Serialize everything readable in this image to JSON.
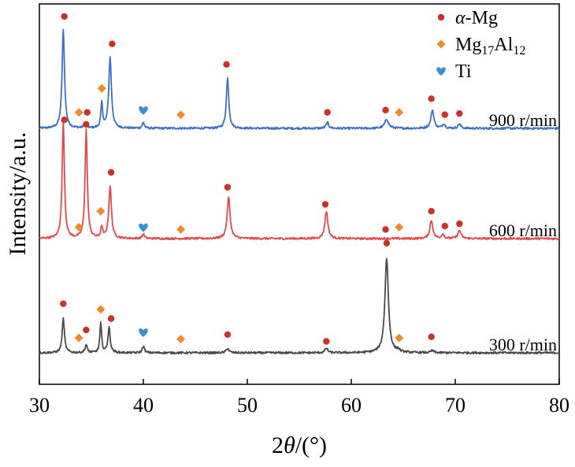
{
  "chart_data": {
    "type": "line",
    "xlabel": "2θ/(°)",
    "ylabel": "Intensity/a.u.",
    "xlim": [
      30,
      80
    ],
    "x_ticks": [
      "30",
      "40",
      "50",
      "60",
      "70",
      "80"
    ],
    "grid": false,
    "legend_position": "top-right",
    "legend": [
      {
        "symbol": "circle",
        "color": "#c8322a",
        "label": "α-Mg"
      },
      {
        "symbol": "diamond",
        "color": "#f08a2c",
        "label": "Mg17Al12"
      },
      {
        "symbol": "heart",
        "color": "#3a8fd4",
        "label": "Ti"
      }
    ],
    "series": [
      {
        "name": "900 r/min",
        "color": "#3e6fc4",
        "peaks": [
          {
            "x": 32.3,
            "h": 0.86,
            "w": 0.14
          },
          {
            "x": 34.4,
            "h": 0.04,
            "w": 0.12
          },
          {
            "x": 36.0,
            "h": 0.22,
            "w": 0.1
          },
          {
            "x": 36.8,
            "h": 0.62,
            "w": 0.15
          },
          {
            "x": 40.0,
            "h": 0.05,
            "w": 0.12
          },
          {
            "x": 48.1,
            "h": 0.44,
            "w": 0.14
          },
          {
            "x": 57.7,
            "h": 0.05,
            "w": 0.15
          },
          {
            "x": 63.4,
            "h": 0.08,
            "w": 0.22
          },
          {
            "x": 67.8,
            "h": 0.16,
            "w": 0.17
          },
          {
            "x": 68.9,
            "h": 0.04,
            "w": 0.14
          },
          {
            "x": 70.4,
            "h": 0.04,
            "w": 0.15
          }
        ],
        "label": "900 r/min",
        "markers": [
          {
            "type": "circle",
            "x": 32.4,
            "y": 0.98
          },
          {
            "type": "diamond",
            "x": 33.8,
            "y": 0.14
          },
          {
            "type": "circle",
            "x": 34.6,
            "y": 0.14
          },
          {
            "type": "diamond",
            "x": 36.0,
            "y": 0.35
          },
          {
            "type": "circle",
            "x": 37.0,
            "y": 0.74
          },
          {
            "type": "heart",
            "x": 40.0,
            "y": 0.16
          },
          {
            "type": "diamond",
            "x": 43.6,
            "y": 0.12
          },
          {
            "type": "circle",
            "x": 48.0,
            "y": 0.56
          },
          {
            "type": "circle",
            "x": 57.7,
            "y": 0.14
          },
          {
            "type": "circle",
            "x": 63.3,
            "y": 0.16
          },
          {
            "type": "diamond",
            "x": 64.6,
            "y": 0.14
          },
          {
            "type": "circle",
            "x": 67.7,
            "y": 0.26
          },
          {
            "type": "circle",
            "x": 69.0,
            "y": 0.12
          },
          {
            "type": "circle",
            "x": 70.4,
            "y": 0.13
          }
        ]
      },
      {
        "name": "600 r/min",
        "color": "#e04a4f",
        "peaks": [
          {
            "x": 32.3,
            "h": 1.02,
            "w": 0.13
          },
          {
            "x": 34.5,
            "h": 0.95,
            "w": 0.13
          },
          {
            "x": 36.0,
            "h": 0.1,
            "w": 0.1
          },
          {
            "x": 36.8,
            "h": 0.46,
            "w": 0.15
          },
          {
            "x": 40.0,
            "h": 0.04,
            "w": 0.12
          },
          {
            "x": 48.2,
            "h": 0.36,
            "w": 0.17
          },
          {
            "x": 57.6,
            "h": 0.24,
            "w": 0.17
          },
          {
            "x": 67.7,
            "h": 0.16,
            "w": 0.17
          },
          {
            "x": 68.8,
            "h": 0.04,
            "w": 0.14
          },
          {
            "x": 70.4,
            "h": 0.07,
            "w": 0.18
          }
        ],
        "label": "600 r/min",
        "markers": [
          {
            "type": "circle",
            "x": 32.4,
            "y": 1.04
          },
          {
            "type": "diamond",
            "x": 33.8,
            "y": 0.1
          },
          {
            "type": "circle",
            "x": 34.5,
            "y": 1.0
          },
          {
            "type": "diamond",
            "x": 35.9,
            "y": 0.24
          },
          {
            "type": "circle",
            "x": 36.9,
            "y": 0.58
          },
          {
            "type": "heart",
            "x": 40.0,
            "y": 0.1
          },
          {
            "type": "diamond",
            "x": 43.6,
            "y": 0.08
          },
          {
            "type": "circle",
            "x": 48.1,
            "y": 0.45
          },
          {
            "type": "circle",
            "x": 57.5,
            "y": 0.3
          },
          {
            "type": "circle",
            "x": 63.3,
            "y": 0.08
          },
          {
            "type": "diamond",
            "x": 64.6,
            "y": 0.1
          },
          {
            "type": "circle",
            "x": 67.7,
            "y": 0.24
          },
          {
            "type": "circle",
            "x": 69.0,
            "y": 0.11
          },
          {
            "type": "circle",
            "x": 70.4,
            "y": 0.13
          }
        ]
      },
      {
        "name": "300 r/min",
        "color": "#4a4a4a",
        "peaks": [
          {
            "x": 32.3,
            "h": 0.3,
            "w": 0.13
          },
          {
            "x": 34.5,
            "h": 0.07,
            "w": 0.12
          },
          {
            "x": 35.9,
            "h": 0.26,
            "w": 0.1
          },
          {
            "x": 36.7,
            "h": 0.22,
            "w": 0.13
          },
          {
            "x": 40.0,
            "h": 0.06,
            "w": 0.12
          },
          {
            "x": 48.1,
            "h": 0.04,
            "w": 0.15
          },
          {
            "x": 57.6,
            "h": 0.04,
            "w": 0.15
          },
          {
            "x": 63.4,
            "h": 0.83,
            "w": 0.2
          },
          {
            "x": 64.5,
            "h": 0.02,
            "w": 0.15
          },
          {
            "x": 67.8,
            "h": 0.02,
            "w": 0.15
          }
        ],
        "label": "300 r/min",
        "markers": [
          {
            "type": "circle",
            "x": 32.3,
            "y": 0.43
          },
          {
            "type": "diamond",
            "x": 33.8,
            "y": 0.13
          },
          {
            "type": "circle",
            "x": 34.5,
            "y": 0.2
          },
          {
            "type": "diamond",
            "x": 35.9,
            "y": 0.38
          },
          {
            "type": "circle",
            "x": 36.9,
            "y": 0.3
          },
          {
            "type": "heart",
            "x": 40.0,
            "y": 0.18
          },
          {
            "type": "diamond",
            "x": 43.6,
            "y": 0.12
          },
          {
            "type": "circle",
            "x": 48.1,
            "y": 0.16
          },
          {
            "type": "circle",
            "x": 57.6,
            "y": 0.1
          },
          {
            "type": "circle",
            "x": 63.4,
            "y": 0.96
          },
          {
            "type": "diamond",
            "x": 64.6,
            "y": 0.13
          },
          {
            "type": "circle",
            "x": 67.7,
            "y": 0.14
          }
        ]
      }
    ]
  }
}
